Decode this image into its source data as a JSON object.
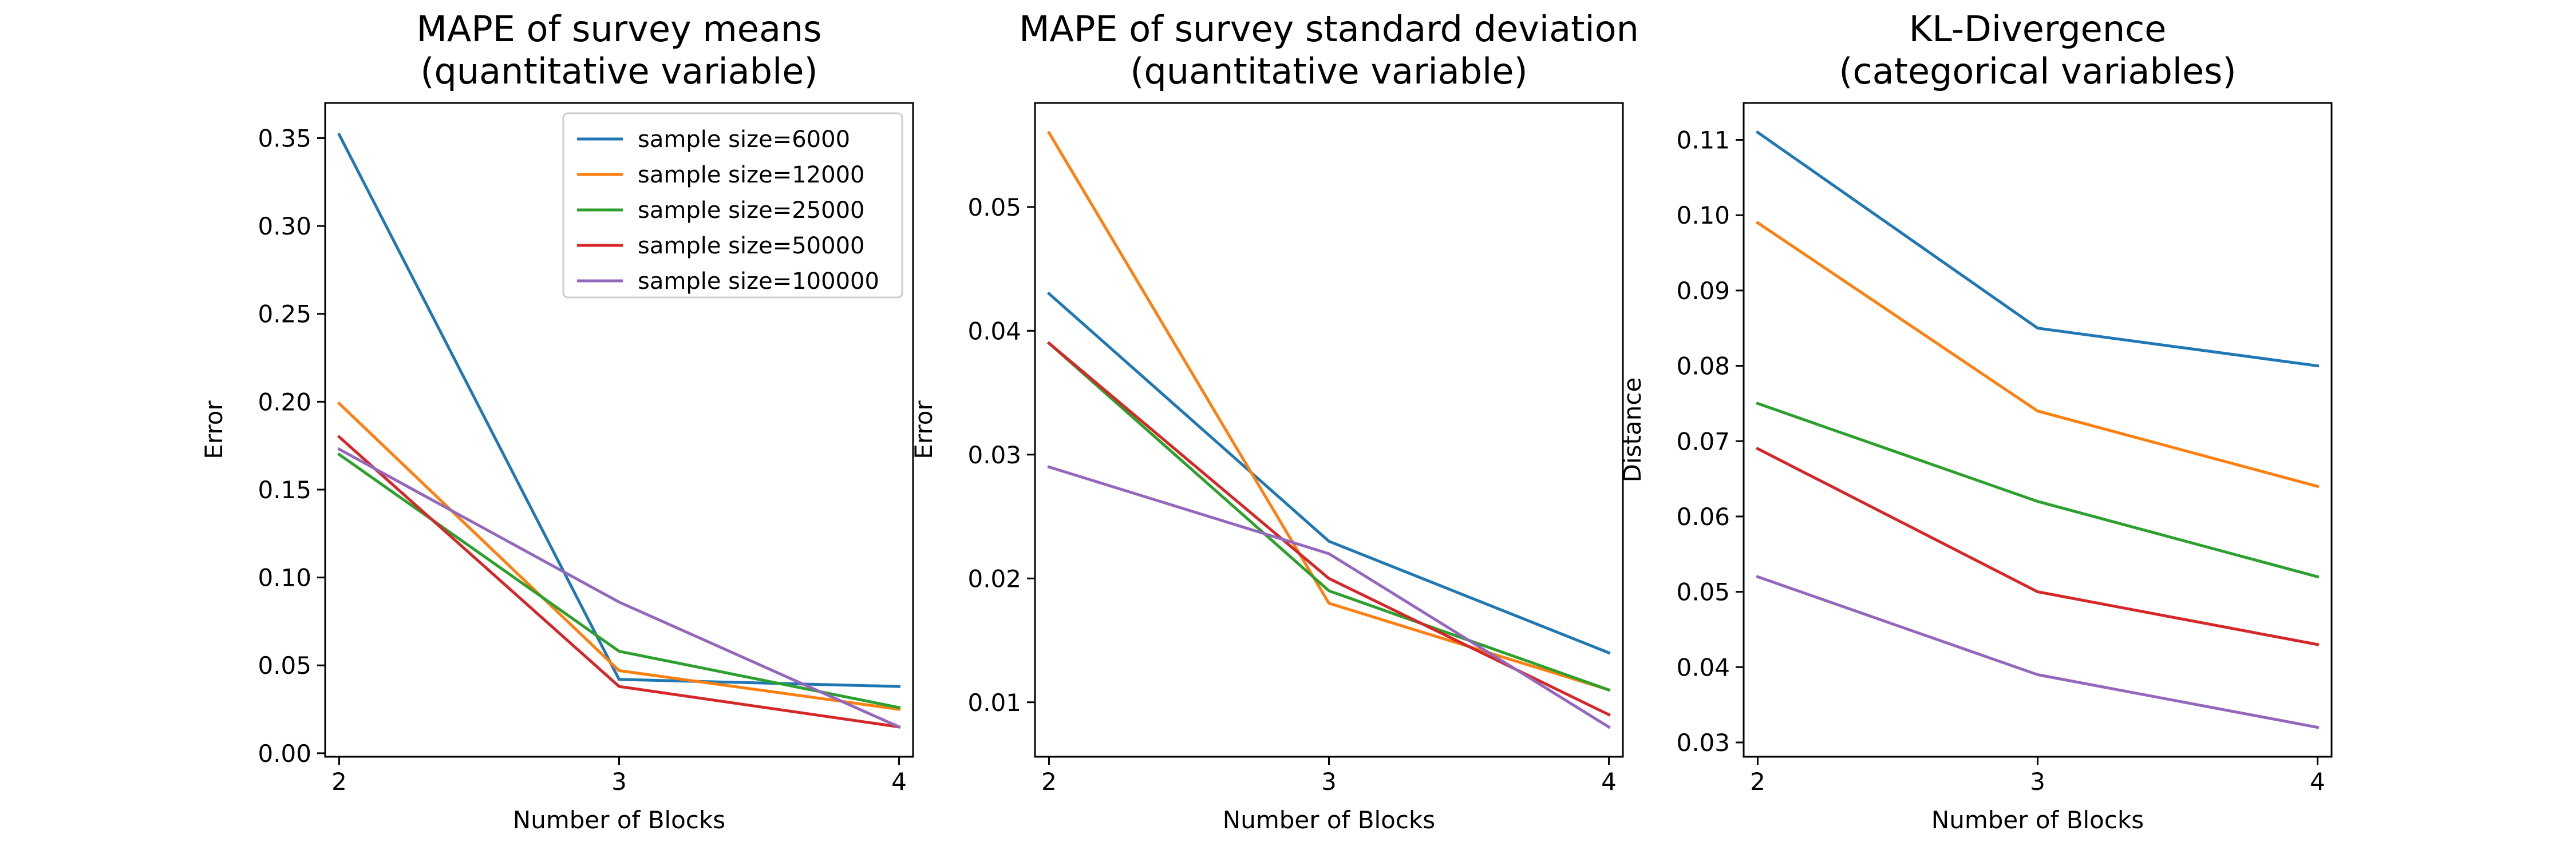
{
  "chart_data": [
    {
      "type": "line",
      "title": "MAPE of survey means\n(quantitative variable)",
      "xlabel": "Number of Blocks",
      "ylabel": "Error",
      "x": [
        2,
        3,
        4
      ],
      "xticks": [
        "2",
        "3",
        "4"
      ],
      "xlim": [
        1.95,
        4.05
      ],
      "ylim": [
        -0.002,
        0.37
      ],
      "yticks": [
        "0.00",
        "0.05",
        "0.10",
        "0.15",
        "0.20",
        "0.25",
        "0.30",
        "0.35"
      ],
      "grid": false,
      "legend": "top-right",
      "series": [
        {
          "name": "sample size=6000",
          "color": "#1f77b4",
          "values": [
            0.352,
            0.042,
            0.038
          ]
        },
        {
          "name": "sample size=12000",
          "color": "#ff7f0e",
          "values": [
            0.199,
            0.047,
            0.025
          ]
        },
        {
          "name": "sample size=25000",
          "color": "#2ca02c",
          "values": [
            0.17,
            0.058,
            0.026
          ]
        },
        {
          "name": "sample size=50000",
          "color": "#d62728",
          "values": [
            0.18,
            0.038,
            0.015
          ]
        },
        {
          "name": "sample size=100000",
          "color": "#9467bd",
          "values": [
            0.173,
            0.086,
            0.015
          ]
        }
      ]
    },
    {
      "type": "line",
      "title": "MAPE of survey standard deviation\n(quantitative variable)",
      "xlabel": "Number of Blocks",
      "ylabel": "Error",
      "x": [
        2,
        3,
        4
      ],
      "xticks": [
        "2",
        "3",
        "4"
      ],
      "xlim": [
        1.95,
        4.05
      ],
      "ylim": [
        0.0056,
        0.0584
      ],
      "yticks": [
        "0.01",
        "0.02",
        "0.03",
        "0.04",
        "0.05"
      ],
      "grid": false,
      "series": [
        {
          "name": "sample size=6000",
          "color": "#1f77b4",
          "values": [
            0.043,
            0.023,
            0.014
          ]
        },
        {
          "name": "sample size=12000",
          "color": "#ff7f0e",
          "values": [
            0.056,
            0.018,
            0.011
          ]
        },
        {
          "name": "sample size=25000",
          "color": "#2ca02c",
          "values": [
            0.039,
            0.019,
            0.011
          ]
        },
        {
          "name": "sample size=50000",
          "color": "#d62728",
          "values": [
            0.039,
            0.02,
            0.009
          ]
        },
        {
          "name": "sample size=100000",
          "color": "#9467bd",
          "values": [
            0.029,
            0.022,
            0.008
          ]
        }
      ]
    },
    {
      "type": "line",
      "title": "KL-Divergence\n(categorical variables)",
      "xlabel": "Number of Blocks",
      "ylabel": "Distance",
      "x": [
        2,
        3,
        4
      ],
      "xticks": [
        "2",
        "3",
        "4"
      ],
      "xlim": [
        1.95,
        4.05
      ],
      "ylim": [
        0.0281,
        0.1149
      ],
      "yticks": [
        "0.03",
        "0.04",
        "0.05",
        "0.06",
        "0.07",
        "0.08",
        "0.09",
        "0.10",
        "0.11"
      ],
      "grid": false,
      "series": [
        {
          "name": "sample size=6000",
          "color": "#1f77b4",
          "values": [
            0.111,
            0.085,
            0.08
          ]
        },
        {
          "name": "sample size=12000",
          "color": "#ff7f0e",
          "values": [
            0.099,
            0.074,
            0.064
          ]
        },
        {
          "name": "sample size=25000",
          "color": "#2ca02c",
          "values": [
            0.075,
            0.062,
            0.052
          ]
        },
        {
          "name": "sample size=50000",
          "color": "#d62728",
          "values": [
            0.069,
            0.05,
            0.043
          ]
        },
        {
          "name": "sample size=100000",
          "color": "#9467bd",
          "values": [
            0.052,
            0.039,
            0.032
          ]
        }
      ]
    }
  ]
}
